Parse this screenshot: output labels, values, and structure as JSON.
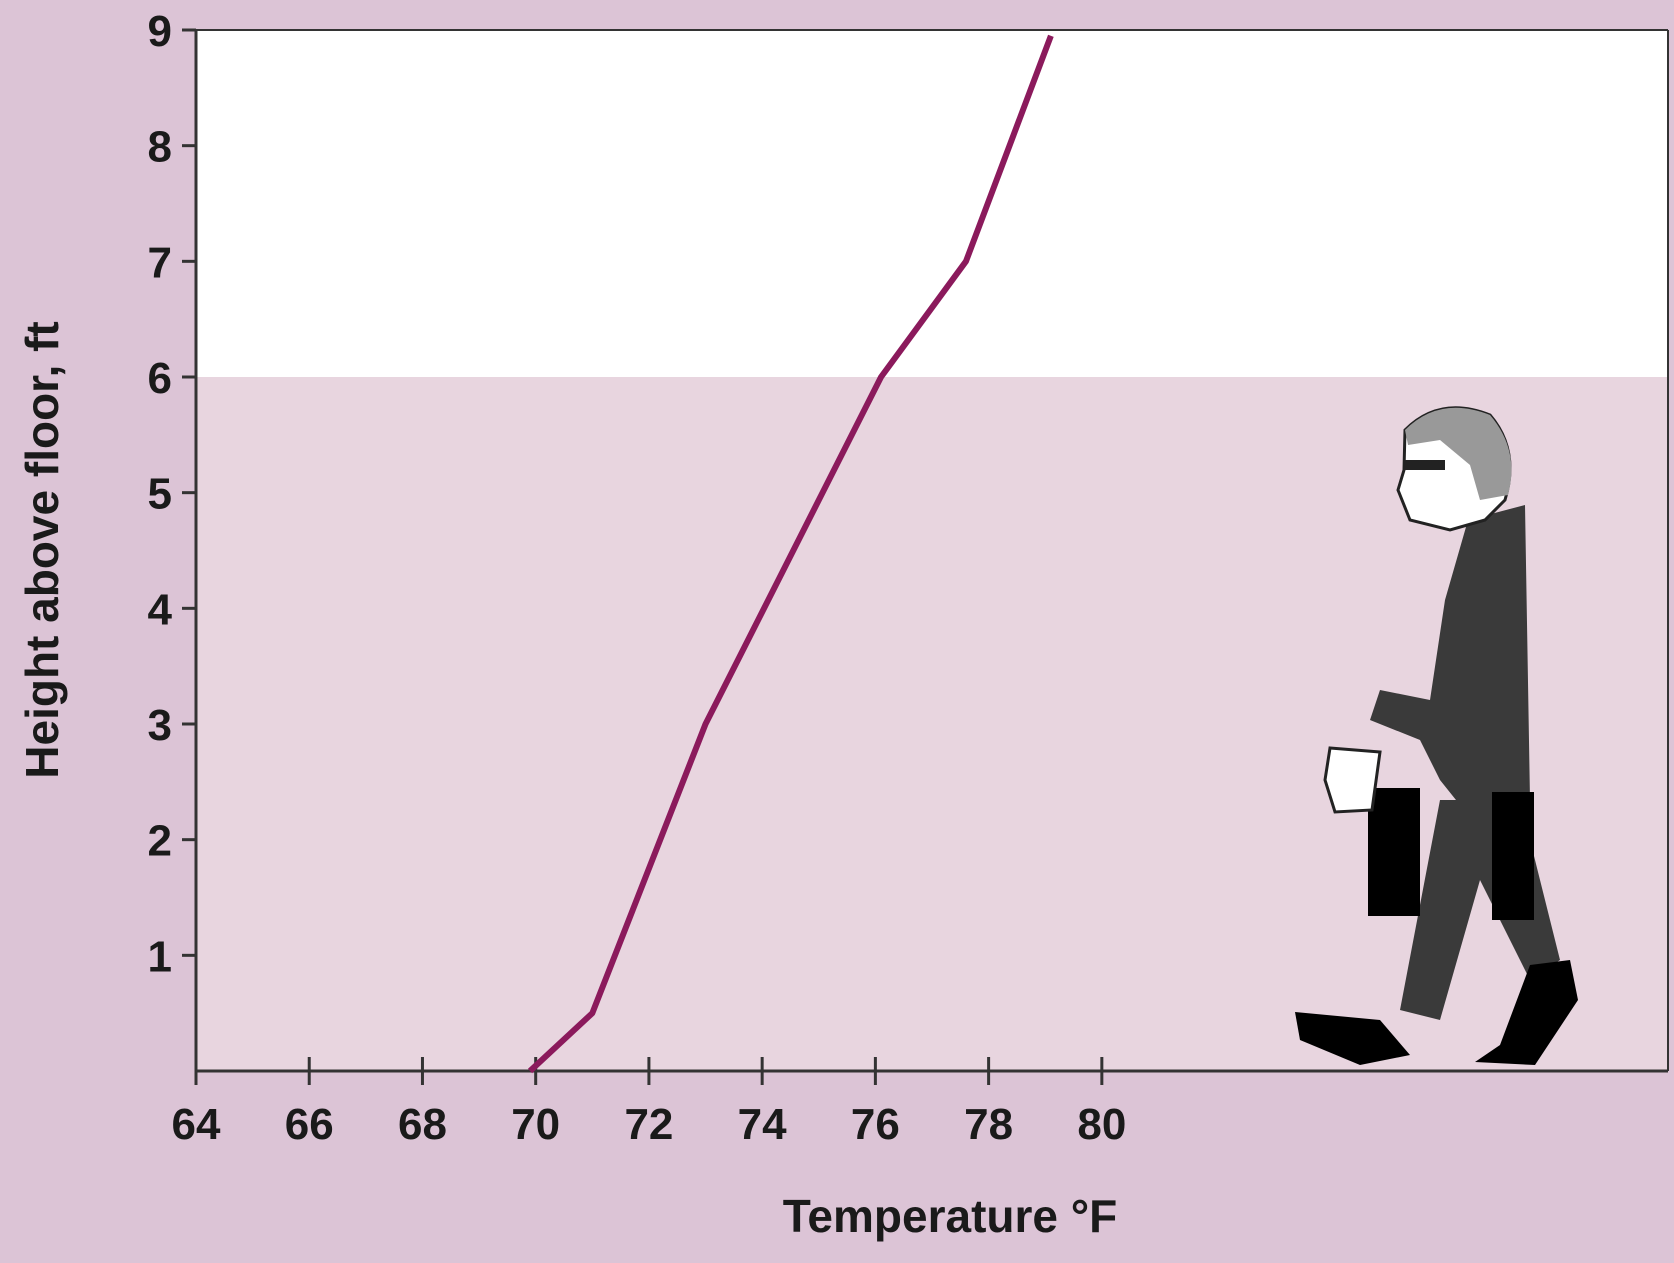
{
  "chart_data": {
    "type": "line",
    "x_label": "Temperature °F",
    "y_label": "Height above floor, ft",
    "x": [
      69.9,
      71,
      73,
      76.1,
      77.6,
      79.1
    ],
    "series": [
      {
        "color": "#8b1a5c",
        "values": [
          0,
          0.5,
          3,
          6,
          7,
          8.95
        ]
      }
    ],
    "xlim": [
      64,
      90
    ],
    "xticks": [
      64,
      66,
      68,
      70,
      72,
      74,
      76,
      78,
      80
    ],
    "ylim": [
      0,
      9
    ],
    "yticks": [
      1,
      2,
      3,
      4,
      5,
      6,
      7,
      8,
      9
    ],
    "shaded_band": [
      0,
      6
    ],
    "shaded_color": "#e8d5df",
    "grid": false
  }
}
